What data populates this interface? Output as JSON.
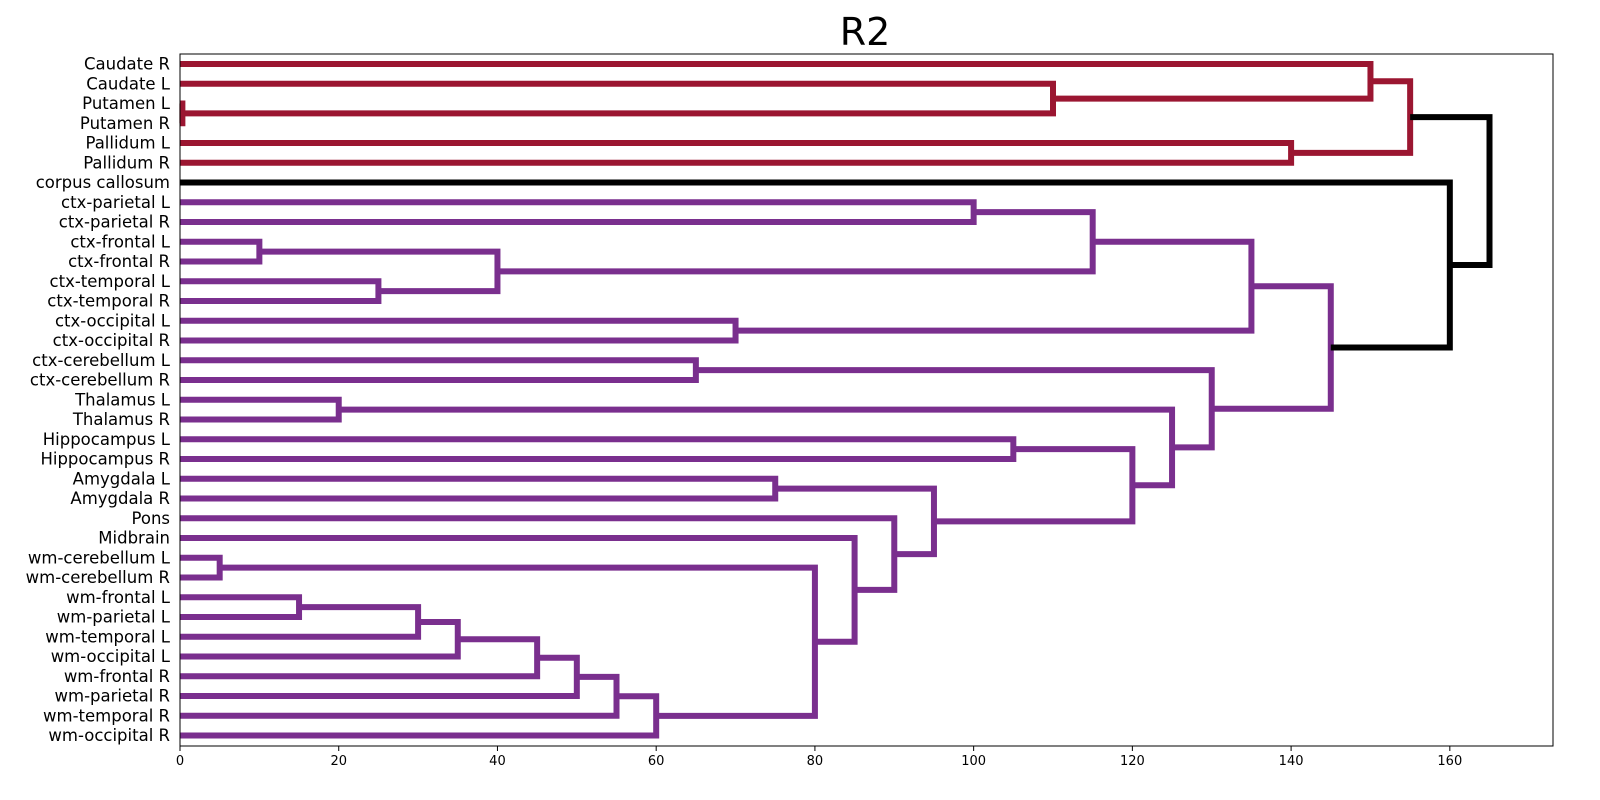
{
  "chart_data": {
    "type": "dendrogram",
    "orientation": "horizontal",
    "title": "R2",
    "xlim": [
      0,
      173
    ],
    "xticks": [
      0,
      20,
      40,
      60,
      80,
      100,
      120,
      140,
      160
    ],
    "grid": false,
    "colors": {
      "cluster_red": "#9b1631",
      "cluster_purple": "#7a2f8e",
      "above_threshold": "#000000"
    },
    "leaves": [
      "Caudate R",
      "Caudate L",
      "Putamen L",
      "Putamen R",
      "Pallidum L",
      "Pallidum R",
      "corpus callosum",
      "ctx-parietal L",
      "ctx-parietal R",
      "ctx-frontal L",
      "ctx-frontal R",
      "ctx-temporal L",
      "ctx-temporal R",
      "ctx-occipital L",
      "ctx-occipital R",
      "ctx-cerebellum L",
      "ctx-cerebellum R",
      "Thalamus L",
      "Thalamus R",
      "Hippocampus L",
      "Hippocampus R",
      "Amygdala L",
      "Amygdala R",
      "Pons",
      "Midbrain",
      "wm-cerebellum L",
      "wm-cerebellum R",
      "wm-frontal L",
      "wm-parietal L",
      "wm-temporal L",
      "wm-occipital L",
      "wm-frontal R",
      "wm-parietal R",
      "wm-temporal R",
      "wm-occipital R"
    ],
    "merges": [
      {
        "a": "L2",
        "b": "L3",
        "height": 0.3,
        "color": "cluster_red"
      },
      {
        "a": "L1",
        "b": "M0",
        "height": 110,
        "color": "cluster_red"
      },
      {
        "a": "L0",
        "b": "M1",
        "height": 150,
        "color": "cluster_red"
      },
      {
        "a": "L4",
        "b": "L5",
        "height": 140,
        "color": "cluster_red"
      },
      {
        "a": "M2",
        "b": "M3",
        "height": 155,
        "color": "cluster_red"
      },
      {
        "a": "L7",
        "b": "L8",
        "height": 100,
        "color": "cluster_purple"
      },
      {
        "a": "L9",
        "b": "L10",
        "height": 10,
        "color": "cluster_purple"
      },
      {
        "a": "L11",
        "b": "L12",
        "height": 25,
        "color": "cluster_purple"
      },
      {
        "a": "M6",
        "b": "M7",
        "height": 40,
        "color": "cluster_purple"
      },
      {
        "a": "M5",
        "b": "M8",
        "height": 115,
        "color": "cluster_purple"
      },
      {
        "a": "L13",
        "b": "L14",
        "height": 70,
        "color": "cluster_purple"
      },
      {
        "a": "M9",
        "b": "M10",
        "height": 135,
        "color": "cluster_purple"
      },
      {
        "a": "L15",
        "b": "L16",
        "height": 65,
        "color": "cluster_purple"
      },
      {
        "a": "L17",
        "b": "L18",
        "height": 20,
        "color": "cluster_purple"
      },
      {
        "a": "L19",
        "b": "L20",
        "height": 105,
        "color": "cluster_purple"
      },
      {
        "a": "L21",
        "b": "L22",
        "height": 75,
        "color": "cluster_purple"
      },
      {
        "a": "L25",
        "b": "L26",
        "height": 5,
        "color": "cluster_purple"
      },
      {
        "a": "L27",
        "b": "L28",
        "height": 15,
        "color": "cluster_purple"
      },
      {
        "a": "M17",
        "b": "L29",
        "height": 30,
        "color": "cluster_purple"
      },
      {
        "a": "M18",
        "b": "L30",
        "height": 35,
        "color": "cluster_purple"
      },
      {
        "a": "M19",
        "b": "L31",
        "height": 45,
        "color": "cluster_purple"
      },
      {
        "a": "M20",
        "b": "L32",
        "height": 50,
        "color": "cluster_purple"
      },
      {
        "a": "M21",
        "b": "L33",
        "height": 55,
        "color": "cluster_purple"
      },
      {
        "a": "M22",
        "b": "L34",
        "height": 60,
        "color": "cluster_purple"
      },
      {
        "a": "M16",
        "b": "M23",
        "height": 80,
        "color": "cluster_purple"
      },
      {
        "a": "L24",
        "b": "M24",
        "height": 85,
        "color": "cluster_purple"
      },
      {
        "a": "L23",
        "b": "M25",
        "height": 90,
        "color": "cluster_purple"
      },
      {
        "a": "M15",
        "b": "M26",
        "height": 95,
        "color": "cluster_purple"
      },
      {
        "a": "M14",
        "b": "M27",
        "height": 120,
        "color": "cluster_purple"
      },
      {
        "a": "M13",
        "b": "M28",
        "height": 125,
        "color": "cluster_purple"
      },
      {
        "a": "M12",
        "b": "M29",
        "height": 130,
        "color": "cluster_purple"
      },
      {
        "a": "M11",
        "b": "M30",
        "height": 145,
        "color": "cluster_purple"
      },
      {
        "a": "L6",
        "b": "M31",
        "height": 160,
        "color": "above_threshold"
      },
      {
        "a": "M4",
        "b": "M32",
        "height": 165,
        "color": "above_threshold"
      }
    ]
  }
}
